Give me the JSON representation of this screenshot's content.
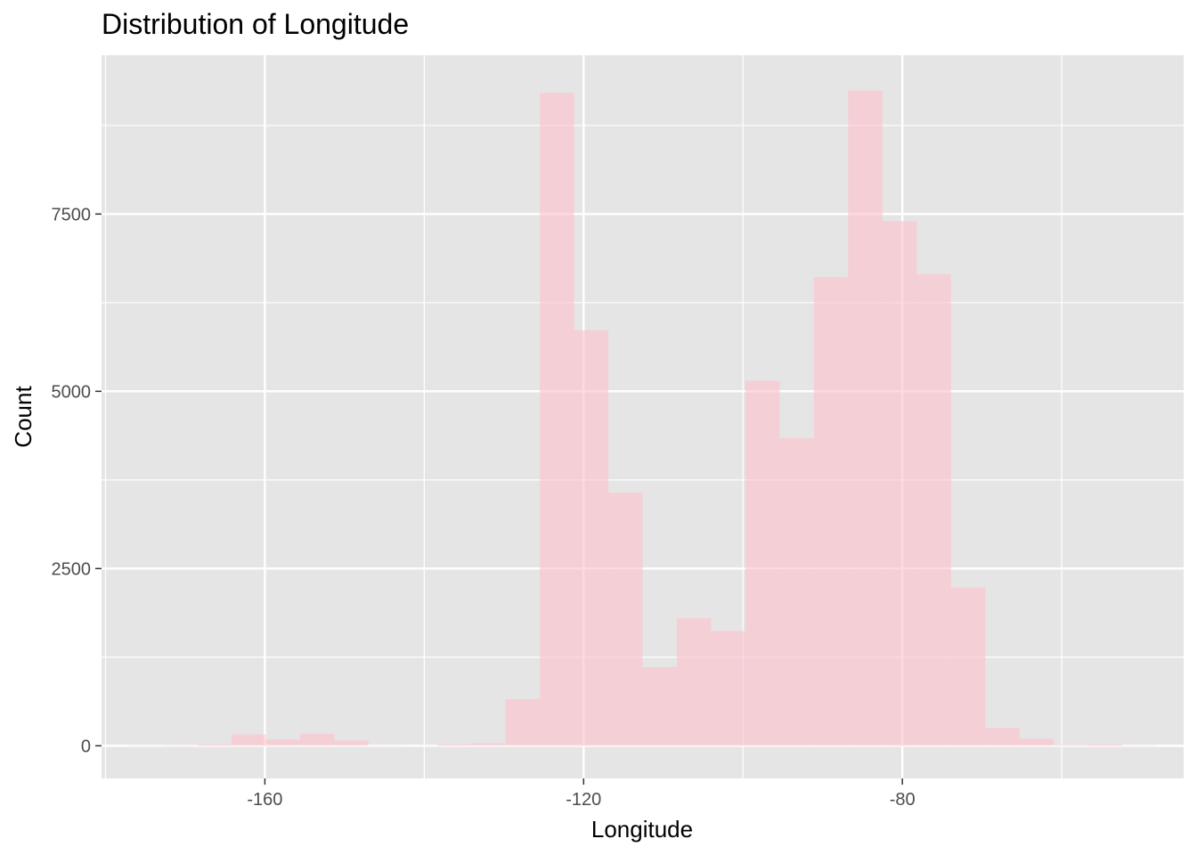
{
  "chart_data": {
    "type": "bar",
    "title": "Distribution of Longitude",
    "xlabel": "Longitude",
    "ylabel": "Count",
    "xlim": [
      -180.5,
      -44.7
    ],
    "ylim": [
      -460,
      9740
    ],
    "x_ticks": [
      -160,
      -120,
      -80
    ],
    "x_tick_labels": [
      "-160",
      "-120",
      "-80"
    ],
    "y_ticks": [
      0,
      2500,
      5000,
      7500
    ],
    "y_tick_labels": [
      "0",
      "2500",
      "5000",
      "7500"
    ],
    "grid": true,
    "bar_color": "#ffc0cb",
    "bins": [
      {
        "x0": -177.1,
        "x1": -172.8,
        "count": 5
      },
      {
        "x0": -172.8,
        "x1": -168.5,
        "count": 8
      },
      {
        "x0": -168.5,
        "x1": -164.2,
        "count": 20
      },
      {
        "x0": -164.2,
        "x1": -159.9,
        "count": 160
      },
      {
        "x0": -159.9,
        "x1": -155.6,
        "count": 90
      },
      {
        "x0": -155.6,
        "x1": -151.3,
        "count": 170
      },
      {
        "x0": -151.3,
        "x1": -147.0,
        "count": 75
      },
      {
        "x0": -147.0,
        "x1": -142.7,
        "count": 5
      },
      {
        "x0": -142.7,
        "x1": -138.4,
        "count": 3
      },
      {
        "x0": -138.4,
        "x1": -134.1,
        "count": 20
      },
      {
        "x0": -134.1,
        "x1": -129.8,
        "count": 35
      },
      {
        "x0": -129.8,
        "x1": -125.5,
        "count": 660
      },
      {
        "x0": -125.5,
        "x1": -121.2,
        "count": 9210
      },
      {
        "x0": -121.2,
        "x1": -116.9,
        "count": 5860
      },
      {
        "x0": -116.9,
        "x1": -112.6,
        "count": 3570
      },
      {
        "x0": -112.6,
        "x1": -108.3,
        "count": 1110
      },
      {
        "x0": -108.3,
        "x1": -104.0,
        "count": 1800
      },
      {
        "x0": -104.0,
        "x1": -99.7,
        "count": 1620
      },
      {
        "x0": -99.7,
        "x1": -95.4,
        "count": 5150
      },
      {
        "x0": -95.4,
        "x1": -91.1,
        "count": 4340
      },
      {
        "x0": -91.1,
        "x1": -86.8,
        "count": 6610
      },
      {
        "x0": -86.8,
        "x1": -82.5,
        "count": 9240
      },
      {
        "x0": -82.5,
        "x1": -78.2,
        "count": 7400
      },
      {
        "x0": -78.2,
        "x1": -73.9,
        "count": 6650
      },
      {
        "x0": -73.9,
        "x1": -69.6,
        "count": 2230
      },
      {
        "x0": -69.6,
        "x1": -65.3,
        "count": 250
      },
      {
        "x0": -65.3,
        "x1": -61.0,
        "count": 100
      },
      {
        "x0": -61.0,
        "x1": -56.7,
        "count": 15
      },
      {
        "x0": -56.7,
        "x1": -52.4,
        "count": 20
      },
      {
        "x0": -52.4,
        "x1": -48.1,
        "count": 5
      }
    ]
  }
}
